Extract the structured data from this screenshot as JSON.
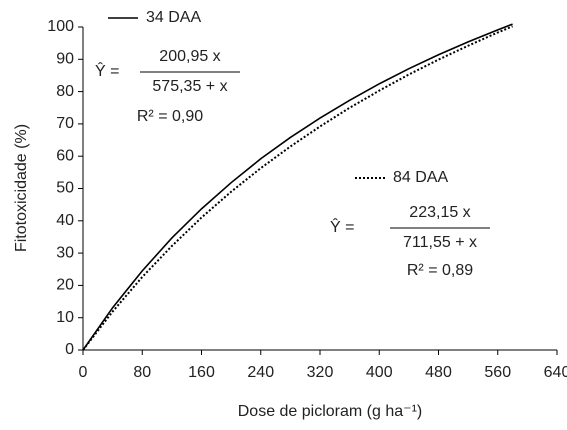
{
  "chart_data": {
    "type": "line",
    "x_label": "Dose de picloram (g ha⁻¹)",
    "y_label": "Fitotoxicidade (%)",
    "x": [
      0,
      40,
      80,
      120,
      160,
      200,
      240,
      280,
      320,
      360,
      400,
      440,
      480,
      520,
      560,
      580
    ],
    "series": [
      {
        "name": "34 DAA",
        "color": "#000000",
        "line_style": "solid",
        "values": [
          0,
          13.1,
          24.5,
          34.7,
          43.7,
          51.8,
          59.2,
          65.8,
          71.8,
          77.3,
          82.4,
          87.1,
          91.4,
          95.4,
          99.1,
          100.9
        ]
      },
      {
        "name": "84 DAA",
        "color": "#000000",
        "line_style": "dotted",
        "values": [
          0,
          11.9,
          22.6,
          32.2,
          41.0,
          49.0,
          56.3,
          63.0,
          69.2,
          75.0,
          80.3,
          85.3,
          89.9,
          94.2,
          98.3,
          100.2
        ]
      }
    ],
    "equations": [
      {
        "lhs": "Ŷ =",
        "numerator": "200,95 x",
        "denominator": "575,35 + x",
        "r2": "R² = 0,90"
      },
      {
        "lhs": "Ŷ =",
        "numerator": "223,15 x",
        "denominator": "711,55 + x",
        "r2": "R² = 0,89"
      }
    ],
    "xlim": [
      0,
      640
    ],
    "xticks": [
      0,
      80,
      160,
      240,
      320,
      400,
      480,
      560,
      640
    ],
    "ylim": [
      0,
      100
    ],
    "yticks": [
      0,
      10,
      20,
      30,
      40,
      50,
      60,
      70,
      80,
      90,
      100
    ],
    "grid": false
  }
}
